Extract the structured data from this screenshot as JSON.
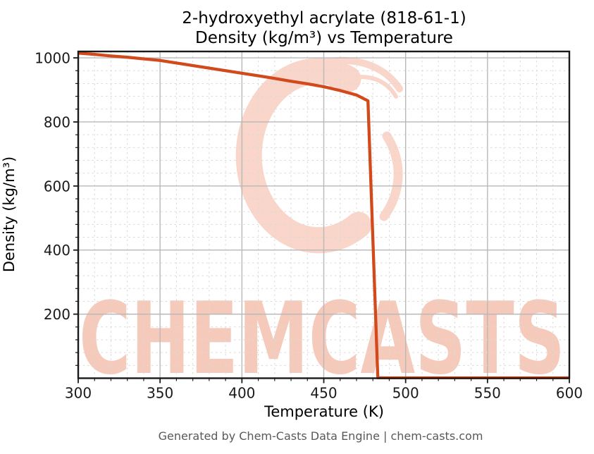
{
  "watermark": {
    "text": "CHEMCASTS",
    "color": "#f6cabb",
    "logo_color": "#f9d6c9"
  },
  "footer": {
    "text": "Generated by Chem-Casts Data Engine | chem-casts.com"
  },
  "colors": {
    "line": "#d2491c",
    "grid_major": "#b8b8b8",
    "grid_minor": "#d9d9d9",
    "spine": "#1a1a1a",
    "tick_label": "#1a1a1a",
    "footer_text": "#595959"
  },
  "chart_data": {
    "type": "line",
    "title": "2-hydroxyethyl acrylate (818-61-1)\nDensity (kg/m³) vs Temperature",
    "title_lines": [
      "2-hydroxyethyl acrylate (818-61-1)",
      "Density (kg/m³) vs Temperature"
    ],
    "xlabel": "Temperature (K)",
    "ylabel": "Density (kg/m³)",
    "xlim": [
      300,
      600
    ],
    "ylim": [
      0,
      1020
    ],
    "x_ticks": [
      300,
      350,
      400,
      450,
      500,
      550,
      600
    ],
    "y_ticks": [
      200,
      400,
      600,
      800,
      1000
    ],
    "x_minor_step": 10,
    "y_minor_step": 40,
    "grid": "major solid, minor dashed",
    "legend_position": "none",
    "line_color": "#d2491c",
    "series": [
      {
        "name": "density",
        "x": [
          300,
          310,
          320,
          330,
          340,
          350,
          360,
          370,
          380,
          390,
          400,
          410,
          420,
          430,
          440,
          450,
          460,
          470,
          477,
          483,
          500,
          550,
          600
        ],
        "y": [
          1015,
          1011,
          1006,
          1002,
          997,
          992,
          984,
          976,
          968,
          960,
          952,
          944,
          936,
          927,
          919,
          910,
          898,
          884,
          866,
          1,
          1,
          1,
          1
        ]
      }
    ]
  }
}
